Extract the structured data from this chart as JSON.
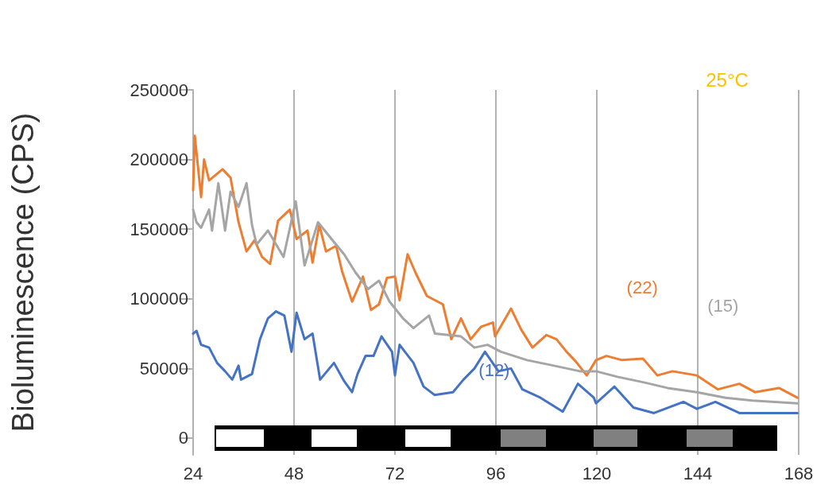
{
  "chart_data": {
    "type": "line",
    "ylabel": "Bioluminescence (CPS)",
    "xlim": [
      24,
      168
    ],
    "xticks": [
      24,
      48,
      72,
      96,
      120,
      144,
      168
    ],
    "ylim": [
      -12000,
      250000
    ],
    "yticks": [
      0,
      50000,
      100000,
      150000,
      200000,
      250000
    ],
    "grid": "x",
    "legend": false,
    "marker": "none",
    "line_style": "solid",
    "annotations": [
      "25°C"
    ],
    "series": [
      {
        "name": "(22)",
        "color": "#ed7d31",
        "x": [
          24,
          24.4,
          25.9,
          26.6,
          27.8,
          31,
          32.9,
          34.8,
          36.7,
          38.6,
          40.4,
          42.3,
          44.2,
          47,
          48.6,
          51.2,
          52.4,
          54,
          55.6,
          58,
          59.4,
          61.8,
          64.4,
          66.3,
          68.2,
          70.1,
          72,
          73.1,
          75,
          77,
          79.6,
          83.4,
          85.4,
          87.7,
          90,
          92.5,
          95.3,
          95.8,
          99.6,
          102,
          104.7,
          108,
          110.4,
          112.8,
          115,
          117.6,
          119.8,
          122.3,
          126,
          131,
          134.4,
          138,
          143.8,
          148.8,
          153.9,
          157.6,
          163.3,
          167.7
        ],
        "values": [
          178000,
          217000,
          173000,
          200000,
          185000,
          193000,
          187000,
          155000,
          134000,
          142000,
          130000,
          125000,
          156000,
          164000,
          143000,
          149000,
          126000,
          153000,
          134000,
          138000,
          120000,
          98000,
          116000,
          92000,
          96000,
          115000,
          116000,
          99000,
          132000,
          118000,
          102000,
          96000,
          71000,
          86000,
          71000,
          80000,
          83000,
          73000,
          93000,
          78000,
          65000,
          74000,
          71000,
          62000,
          55000,
          45000,
          56000,
          59000,
          56000,
          57000,
          45000,
          48000,
          45000,
          35000,
          39000,
          33000,
          36000,
          29000
        ]
      },
      {
        "name": "(15)",
        "color": "#a5a5a5",
        "x": [
          24,
          24.8,
          25.9,
          27.8,
          28.5,
          30,
          31.6,
          32.9,
          34.8,
          36.7,
          38,
          39.1,
          41.8,
          45.5,
          48.4,
          50.5,
          53.7,
          56.9,
          59.9,
          62.6,
          65.6,
          68.2,
          70.7,
          73.9,
          76.4,
          80.1,
          81.5,
          87.7,
          90.9,
          94,
          97.2,
          103.4,
          109.8,
          116,
          119.8,
          124.9,
          131.2,
          136.8,
          143.8,
          150.6,
          157,
          167.7
        ],
        "values": [
          164000,
          155000,
          151000,
          164000,
          149000,
          183000,
          149000,
          177000,
          166000,
          183000,
          153000,
          139000,
          149000,
          130000,
          170000,
          124000,
          155000,
          143000,
          132000,
          119000,
          107000,
          113000,
          98000,
          86000,
          79000,
          88000,
          75000,
          73000,
          65000,
          67000,
          62000,
          56000,
          52000,
          48000,
          48000,
          44000,
          40000,
          36000,
          33000,
          29000,
          27000,
          25000
        ]
      },
      {
        "name": "(12)",
        "color": "#4472c4",
        "x": [
          24,
          24.8,
          25.9,
          27.8,
          29.7,
          31.6,
          33.3,
          34.8,
          35.4,
          38,
          39.9,
          41.8,
          43.7,
          45.7,
          47.4,
          48.6,
          50.5,
          52.4,
          54.2,
          57.5,
          59.9,
          61.8,
          63.1,
          65,
          66.9,
          68.8,
          71.3,
          72,
          73.1,
          76.4,
          78.8,
          81.4,
          85.8,
          88.3,
          90.9,
          93.4,
          96.6,
          99.6,
          102.3,
          106.6,
          111.9,
          115.5,
          119.3,
          119.8,
          124.2,
          128.7,
          133.6,
          140.6,
          143.8,
          148.2,
          153.9,
          160.1,
          167.7
        ],
        "values": [
          75000,
          77000,
          67000,
          65000,
          54000,
          48000,
          42000,
          52000,
          42000,
          46000,
          71000,
          86000,
          91000,
          88000,
          62000,
          90000,
          71000,
          75000,
          42000,
          54000,
          41000,
          33000,
          46000,
          59000,
          59000,
          73000,
          62000,
          45000,
          67000,
          54000,
          37000,
          31000,
          33000,
          42000,
          50000,
          62000,
          48000,
          50000,
          35000,
          29000,
          19000,
          39000,
          29000,
          25000,
          37000,
          22000,
          18000,
          26000,
          21000,
          26000,
          18000,
          18000,
          18000
        ]
      }
    ]
  }
}
